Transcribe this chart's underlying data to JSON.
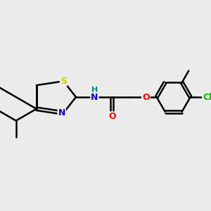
{
  "background_color": "#ebebeb",
  "bond_color": "#000000",
  "bond_width": 1.8,
  "atom_colors": {
    "S": "#cccc00",
    "N": "#0000cc",
    "NH": "#008080",
    "O": "#ff0000",
    "Cl": "#00bb00",
    "C": "#000000",
    "H": "#008080"
  },
  "figsize": [
    3.0,
    3.0
  ],
  "dpi": 100,
  "xlim": [
    -0.2,
    5.8
  ],
  "ylim": [
    0.5,
    4.5
  ]
}
